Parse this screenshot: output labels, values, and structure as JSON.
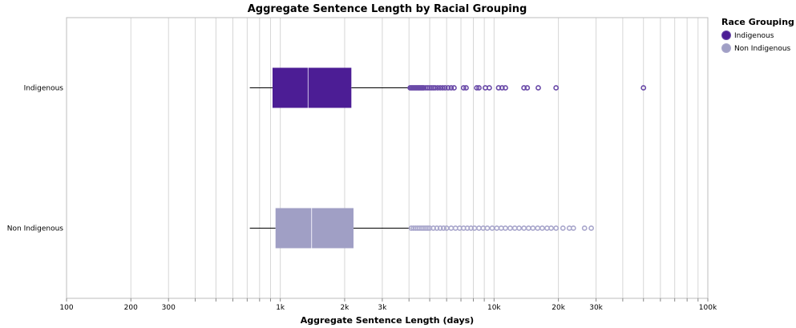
{
  "chart_data": {
    "type": "boxplot",
    "title": "Aggregate Sentence Length by Racial Grouping",
    "xlabel": "Aggregate Sentence Length (days)",
    "ylabel": "",
    "x_scale": "log",
    "xlim": [
      100,
      100000
    ],
    "x_ticks": [
      {
        "value": 100,
        "label": "100"
      },
      {
        "value": 200,
        "label": "200"
      },
      {
        "value": 300,
        "label": "300"
      },
      {
        "value": 400,
        "label": ""
      },
      {
        "value": 500,
        "label": ""
      },
      {
        "value": 600,
        "label": ""
      },
      {
        "value": 700,
        "label": ""
      },
      {
        "value": 800,
        "label": ""
      },
      {
        "value": 900,
        "label": ""
      },
      {
        "value": 1000,
        "label": "1k"
      },
      {
        "value": 2000,
        "label": "2k"
      },
      {
        "value": 3000,
        "label": "3k"
      },
      {
        "value": 4000,
        "label": ""
      },
      {
        "value": 5000,
        "label": ""
      },
      {
        "value": 6000,
        "label": ""
      },
      {
        "value": 7000,
        "label": ""
      },
      {
        "value": 8000,
        "label": ""
      },
      {
        "value": 9000,
        "label": ""
      },
      {
        "value": 10000,
        "label": "10k"
      },
      {
        "value": 20000,
        "label": "20k"
      },
      {
        "value": 30000,
        "label": "30k"
      },
      {
        "value": 40000,
        "label": ""
      },
      {
        "value": 50000,
        "label": ""
      },
      {
        "value": 60000,
        "label": ""
      },
      {
        "value": 70000,
        "label": ""
      },
      {
        "value": 80000,
        "label": ""
      },
      {
        "value": 90000,
        "label": ""
      },
      {
        "value": 100000,
        "label": "100k"
      }
    ],
    "grid": true,
    "legend_title": "Race Grouping",
    "legend_placement": "right",
    "series": [
      {
        "name": "Indigenous",
        "color": "#4c1d95",
        "outlier_color": "#6a4aa8",
        "median_color": "#b9a6da",
        "whisker_low": 720,
        "q1": 920,
        "median": 1350,
        "q3": 2150,
        "whisker_high": 4000,
        "outliers": [
          4050,
          4100,
          4150,
          4200,
          4250,
          4300,
          4350,
          4400,
          4450,
          4500,
          4550,
          4600,
          4650,
          4700,
          4800,
          4900,
          5000,
          5100,
          5200,
          5300,
          5450,
          5600,
          5750,
          5900,
          6100,
          6300,
          6500,
          7200,
          7400,
          8300,
          8500,
          9100,
          9500,
          10500,
          10900,
          11300,
          13800,
          14300,
          16100,
          19500,
          50000
        ]
      },
      {
        "name": "Non Indigenous",
        "color": "#a09fc5",
        "outlier_color": "#a9a7cc",
        "median_color": "#e2e1ef",
        "whisker_low": 720,
        "q1": 950,
        "median": 1400,
        "q3": 2200,
        "whisker_high": 4050,
        "outliers": [
          4100,
          4200,
          4300,
          4400,
          4500,
          4600,
          4700,
          4800,
          4900,
          5000,
          5200,
          5400,
          5600,
          5800,
          6000,
          6300,
          6600,
          6900,
          7200,
          7500,
          7800,
          8100,
          8500,
          8900,
          9300,
          9800,
          10300,
          10800,
          11300,
          11900,
          12500,
          13100,
          13800,
          14500,
          15200,
          16000,
          16800,
          17700,
          18500,
          19500,
          21000,
          22500,
          23500,
          26500,
          28500
        ]
      }
    ]
  }
}
